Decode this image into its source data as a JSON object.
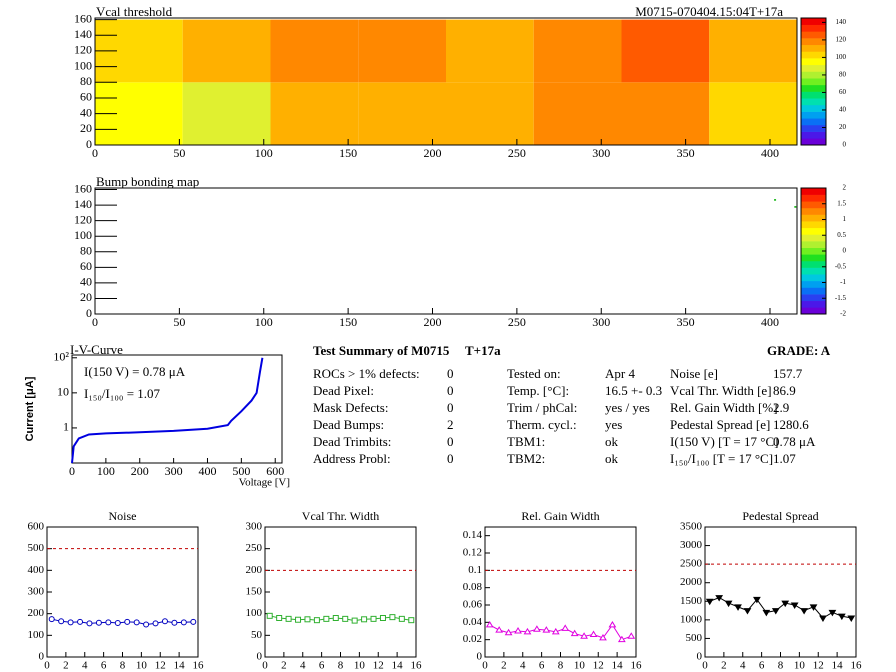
{
  "chart_data": [
    {
      "type": "heatmap",
      "title": "Vcal threshold",
      "subtitle": "M0715-070404.15:04T+17a",
      "xbins": [
        0,
        52,
        104,
        156,
        208,
        260,
        312,
        364,
        416
      ],
      "ybins": [
        0,
        80,
        160
      ],
      "z": [
        [
          95,
          90,
          112,
          108,
          110,
          118,
          115,
          105
        ],
        [
          105,
          110,
          120,
          115,
          112,
          118,
          125,
          110
        ]
      ],
      "xlim": [
        0,
        416
      ],
      "ylim": [
        0,
        162
      ],
      "xticks": [
        0,
        50,
        100,
        150,
        200,
        250,
        300,
        350,
        400
      ],
      "yticks": [
        0,
        20,
        40,
        60,
        80,
        100,
        120,
        140,
        160
      ],
      "zlim": [
        0,
        145
      ],
      "zticks": [
        0,
        20,
        40,
        60,
        80,
        100,
        120,
        140
      ],
      "palette": [
        "#6a00d8",
        "#4b18e8",
        "#2a40f0",
        "#0a70f5",
        "#00a0f0",
        "#00c8e0",
        "#00e0b0",
        "#00e070",
        "#20e020",
        "#70f020",
        "#b0f030",
        "#e0f030",
        "#ffff00",
        "#ffd800",
        "#ffb000",
        "#ff8800",
        "#ff5a00",
        "#ff2a00",
        "#f00000"
      ]
    },
    {
      "type": "scatter",
      "title": "Bump bonding map",
      "x": [
        403,
        415
      ],
      "y": [
        147,
        138
      ],
      "color": "#00b000",
      "xlim": [
        0,
        416
      ],
      "ylim": [
        0,
        162
      ],
      "xticks": [
        0,
        50,
        100,
        150,
        200,
        250,
        300,
        350,
        400
      ],
      "yticks": [
        0,
        20,
        40,
        60,
        80,
        100,
        120,
        140,
        160
      ],
      "zlim": [
        -2,
        2
      ],
      "zticks": [
        -2,
        -1.5,
        -1,
        -0.5,
        0,
        0.5,
        1,
        1.5,
        2
      ],
      "palette": [
        "#6a00d8",
        "#4b18e8",
        "#2a40f0",
        "#0a70f5",
        "#00a0f0",
        "#00c8e0",
        "#00e0b0",
        "#00e070",
        "#20e020",
        "#70f020",
        "#b0f030",
        "#e0f030",
        "#ffff00",
        "#ffd800",
        "#ffb000",
        "#ff8800",
        "#ff5a00",
        "#ff2a00",
        "#f00000"
      ]
    },
    {
      "type": "line",
      "title": "I-V-Curve",
      "x_label": "Voltage [V]",
      "y_label": "Current [μA]",
      "log_y": true,
      "color": "#0000e0",
      "annotations": [
        "I(150 V) = 0.78 μA",
        "I₁₅₀/I₁₀₀ =  1.07"
      ],
      "x": [
        0,
        5,
        20,
        50,
        100,
        200,
        300,
        400,
        460,
        470,
        500,
        530,
        545,
        555,
        562
      ],
      "y": [
        0.1,
        0.3,
        0.5,
        0.65,
        0.7,
        0.75,
        0.82,
        0.95,
        1.2,
        1.6,
        3,
        6,
        10,
        40,
        100
      ],
      "xlim": [
        0,
        620
      ],
      "ylim": [
        0.1,
        120
      ],
      "xticks": [
        0,
        100,
        200,
        300,
        400,
        500,
        600
      ],
      "yticks": [
        1,
        10,
        {
          "value": 100,
          "label": "10²"
        }
      ]
    },
    {
      "type": "line",
      "title": "Noise",
      "marker": "circle",
      "color": "#0000c0",
      "threshold": 500,
      "x": [
        0.5,
        1.5,
        2.5,
        3.5,
        4.5,
        5.5,
        6.5,
        7.5,
        8.5,
        9.5,
        10.5,
        11.5,
        12.5,
        13.5,
        14.5,
        15.5
      ],
      "y": [
        175,
        165,
        160,
        162,
        155,
        158,
        160,
        157,
        162,
        160,
        150,
        155,
        165,
        158,
        160,
        162
      ],
      "xlim": [
        0,
        16
      ],
      "ylim": [
        0,
        600
      ],
      "xticks": [
        0,
        2,
        4,
        6,
        8,
        10,
        12,
        14,
        16
      ],
      "yticks": [
        0,
        100,
        200,
        300,
        400,
        500,
        600
      ]
    },
    {
      "type": "line",
      "title": "Vcal Thr. Width",
      "marker": "square",
      "color": "#30b030",
      "threshold": 200,
      "x": [
        0.5,
        1.5,
        2.5,
        3.5,
        4.5,
        5.5,
        6.5,
        7.5,
        8.5,
        9.5,
        10.5,
        11.5,
        12.5,
        13.5,
        14.5,
        15.5
      ],
      "y": [
        95,
        90,
        88,
        86,
        87,
        85,
        88,
        90,
        88,
        84,
        87,
        88,
        90,
        92,
        88,
        85
      ],
      "xlim": [
        0,
        16
      ],
      "ylim": [
        0,
        300
      ],
      "xticks": [
        0,
        2,
        4,
        6,
        8,
        10,
        12,
        14,
        16
      ],
      "yticks": [
        0,
        50,
        100,
        150,
        200,
        250,
        300
      ]
    },
    {
      "type": "line",
      "title": "Rel. Gain Width",
      "marker": "triangle",
      "color": "#e000e0",
      "threshold": 0.1,
      "x": [
        0.5,
        1.5,
        2.5,
        3.5,
        4.5,
        5.5,
        6.5,
        7.5,
        8.5,
        9.5,
        10.5,
        11.5,
        12.5,
        13.5,
        14.5,
        15.5
      ],
      "y": [
        0.037,
        0.031,
        0.028,
        0.03,
        0.029,
        0.032,
        0.031,
        0.029,
        0.033,
        0.027,
        0.024,
        0.026,
        0.022,
        0.037,
        0.02,
        0.024
      ],
      "xlim": [
        0,
        16
      ],
      "ylim": [
        0,
        0.15
      ],
      "xticks": [
        0,
        2,
        4,
        6,
        8,
        10,
        12,
        14,
        16
      ],
      "yticks": [
        0,
        0.02,
        0.04,
        0.06,
        0.08,
        0.1,
        0.12,
        0.14
      ]
    },
    {
      "type": "line",
      "title": "Pedestal Spread",
      "marker": "tridown",
      "color": "#000000",
      "threshold": 2500,
      "x": [
        0.5,
        1.5,
        2.5,
        3.5,
        4.5,
        5.5,
        6.5,
        7.5,
        8.5,
        9.5,
        10.5,
        11.5,
        12.5,
        13.5,
        14.5,
        15.5
      ],
      "y": [
        1500,
        1600,
        1450,
        1350,
        1250,
        1550,
        1200,
        1250,
        1450,
        1400,
        1250,
        1350,
        1050,
        1200,
        1100,
        1050
      ],
      "xlim": [
        0,
        16
      ],
      "ylim": [
        0,
        3500
      ],
      "xticks": [
        0,
        2,
        4,
        6,
        8,
        10,
        12,
        14,
        16
      ],
      "yticks": [
        0,
        500,
        1000,
        1500,
        2000,
        2500,
        3000,
        3500
      ]
    }
  ],
  "summary": {
    "title": "Test Summary of M0715",
    "tag": "T+17a",
    "grade": "GRADE:  A",
    "columns": [
      [
        [
          "ROCs > 1% defects:",
          "0"
        ],
        [
          "Dead Pixel:",
          "0"
        ],
        [
          "Mask Defects:",
          "0"
        ],
        [
          "Dead Bumps:",
          "2"
        ],
        [
          "Dead Trimbits:",
          "0"
        ],
        [
          "Address Probl:",
          "0"
        ]
      ],
      [
        [
          "Tested on:",
          "Apr 4"
        ],
        [
          "Temp. [°C]:",
          "16.5 +- 0.3"
        ],
        [
          "Trim / phCal:",
          "yes / yes"
        ],
        [
          "Therm. cycl.:",
          "yes"
        ],
        [
          "TBM1:",
          "ok"
        ],
        [
          "TBM2:",
          "ok"
        ]
      ],
      [
        [
          "Noise [e]",
          "157.7"
        ],
        [
          "Vcal Thr. Width [e]",
          "86.9"
        ],
        [
          "Rel. Gain Width [%]",
          "2.9"
        ],
        [
          "Pedestal Spread [e]",
          "1280.6"
        ],
        [
          "I(150 V) [T = 17 °C]",
          "0.78 μA"
        ],
        [
          "I₁₅₀/I₁₀₀  [T = 17 °C]",
          "1.07"
        ]
      ]
    ]
  }
}
